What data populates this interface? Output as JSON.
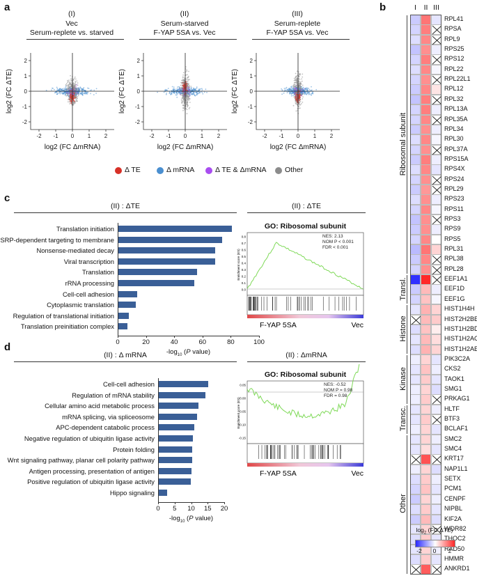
{
  "panel_a": {
    "label": "a",
    "plots": [
      {
        "roman": "(I)",
        "title1": "Vec",
        "title2": "Serum-replete vs. starved"
      },
      {
        "roman": "(II)",
        "title1": "Serum-starved",
        "title2": "F-YAP 5SA vs. Vec"
      },
      {
        "roman": "(III)",
        "title1": "Serum-replete",
        "title2": "F-YAP 5SA vs. Vec"
      }
    ],
    "xlabel": "log2 (FC ΔmRNA)",
    "ylabel": "log2 (FC ΔTE)",
    "xticks": [
      "-2",
      "-1",
      "0",
      "1",
      "2"
    ],
    "yticks": [
      "2",
      "1",
      "0",
      "-1",
      "-2"
    ],
    "legend": [
      {
        "label": "Δ TE",
        "color": "#d73027"
      },
      {
        "label": "Δ mRNA",
        "color": "#4a8fd0"
      },
      {
        "label": "Δ TE & ΔmRNA",
        "color": "#a94df0"
      },
      {
        "label": "Other",
        "color": "#8c8c8c"
      }
    ]
  },
  "panel_c": {
    "label": "c",
    "title": "(II) : ΔTE",
    "xlabel": "-log10 (P value)",
    "gsea_title": "(II) : ΔTE",
    "gsea": {
      "heading": "GO: Ribosomal subunit",
      "nes": "NES: 2.13",
      "nom": "NOM P < 0.001",
      "fdr": "FDR < 0.001",
      "ylabel": "Enrichment score (ES)",
      "yticks": [
        "0.8",
        "0.7",
        "0.6",
        "0.5",
        "0.4",
        "0.3",
        "0.2",
        "0.1",
        "0.0"
      ],
      "left": "F-YAP 5SA",
      "right": "Vec"
    }
  },
  "panel_d": {
    "label": "d",
    "title": "(II) : Δ mRNA",
    "xlabel": "-log10 (P value)",
    "gsea_title": "(II) : ΔmRNA",
    "gsea": {
      "heading": "GO: Ribosomal subunit",
      "nes": "NES: -0.52",
      "nom": "NOM P = 0.98",
      "fdr": "FDR = 0.98",
      "ylabel": "Enrichment score (ES)",
      "yticks": [
        "0.05",
        "0.00",
        "-0.05",
        "-0.10",
        "-0.15"
      ],
      "left": "F-YAP 5SA",
      "right": "Vec"
    }
  },
  "chart_data": [
    {
      "type": "bar",
      "orientation": "horizontal",
      "title": "(II) : ΔTE",
      "categories": [
        "Translation initiation",
        "SRP-dependent targeting to membrane",
        "Nonsense-mediated decay",
        "Viral transcription",
        "Translation",
        "rRNA processing",
        "Cell-cell adhesion",
        "Cytoplasmic translation",
        "Regulation of translational initiation",
        "Translation preinitiation complex"
      ],
      "values": [
        81,
        74,
        69,
        69,
        56,
        54,
        14,
        13,
        8,
        7
      ],
      "xlabel": "-log10 (P value)",
      "xlim": [
        0,
        100
      ],
      "xticks": [
        "0",
        "20",
        "40",
        "60",
        "80",
        "100"
      ]
    },
    {
      "type": "bar",
      "orientation": "horizontal",
      "title": "(II) : Δ mRNA",
      "categories": [
        "Cell-cell adhesion",
        "Regulation of mRNA stability",
        "Cellular amino acid metabolic process",
        "mRNA splicing, via spliceosome",
        "APC-dependent catabolic process",
        "Negative regulation of ubiquitin ligase activity",
        "Protein folding",
        "Wnt signaling pathway, planar cell polarity pathway",
        "Antigen processing, presentation of antigen",
        "Positive regulation of ubiquitin ligase activity",
        "Hippo signaling"
      ],
      "values": [
        15.2,
        14.3,
        12.2,
        11.8,
        11.0,
        10.5,
        10.3,
        10.2,
        10.0,
        9.8,
        2.7
      ],
      "xlabel": "-log10 (P value)",
      "xlim": [
        0,
        20
      ],
      "xticks": [
        "0",
        "5",
        "10",
        "15",
        "20"
      ]
    },
    {
      "type": "heatmap",
      "title": "log2 (FC ΔTE)",
      "columns": [
        "I",
        "II",
        "III"
      ],
      "colorbar_ticks": [
        "-2",
        "0",
        "2"
      ],
      "groups": [
        {
          "name": "Ribosomal subunit",
          "rows": [
            "RPL41",
            "RPSA",
            "RPL9",
            "RPS25",
            "RPS12",
            "RPL22",
            "RPL22L1",
            "RPL12",
            "RPL32",
            "RPL13A",
            "RPL35A",
            "RPL34",
            "RPL30",
            "RPL37A",
            "RPS15A",
            "RPS4X",
            "RPS24",
            "RPL29",
            "RPS23",
            "RPS11",
            "RPS3",
            "RPS9",
            "RPS5",
            "RPL31",
            "RPL38",
            "RPL28"
          ]
        },
        {
          "name": "Transl.",
          "rows": [
            "EEF1A1",
            "EEF1D",
            "EEF1G"
          ]
        },
        {
          "name": "Histone",
          "rows": [
            "HIST1H4H",
            "HIST2H2BE",
            "HIST1H2BD",
            "HIST1H2AC",
            "HIST1H2AE"
          ]
        },
        {
          "name": "Kinase",
          "rows": [
            "PIK3C2A",
            "CKS2",
            "TAOK1",
            "SMG1",
            "PRKAG1"
          ]
        },
        {
          "name": "Transc.",
          "rows": [
            "HLTF",
            "BTF3",
            "BCLAF1"
          ]
        },
        {
          "name": "Other",
          "rows": [
            "SMC2",
            "SMC4",
            "KRT17",
            "NAP1L1",
            "SETX",
            "PCM1",
            "CENPF",
            "NIPBL",
            "KIF2A",
            "WDR82",
            "THOC2",
            "RAD50",
            "HMMR",
            "ANKRD1"
          ]
        }
      ],
      "values": [
        [
          -0.6,
          1.6,
          -0.3
        ],
        [
          -0.5,
          1.5,
          null
        ],
        [
          -0.4,
          1.4,
          null
        ],
        [
          -0.7,
          1.3,
          -0.2
        ],
        [
          -0.5,
          1.5,
          null
        ],
        [
          -0.4,
          1.4,
          -0.1
        ],
        [
          -0.5,
          1.3,
          null
        ],
        [
          -0.6,
          1.4,
          0.3
        ],
        [
          -0.7,
          1.5,
          null
        ],
        [
          -0.5,
          1.5,
          -0.2
        ],
        [
          -0.5,
          1.4,
          null
        ],
        [
          -0.6,
          1.3,
          -0.2
        ],
        [
          -0.4,
          1.4,
          -0.1
        ],
        [
          -0.5,
          1.3,
          null
        ],
        [
          -0.6,
          1.5,
          -0.2
        ],
        [
          -0.4,
          1.4,
          -0.3
        ],
        [
          -0.5,
          1.3,
          null
        ],
        [
          -0.6,
          1.2,
          null
        ],
        [
          -0.4,
          1.3,
          -0.2
        ],
        [
          -0.5,
          1.4,
          -0.1
        ],
        [
          -0.7,
          1.3,
          null
        ],
        [
          -0.6,
          1.3,
          -0.2
        ],
        [
          -0.5,
          1.4,
          0.0
        ],
        [
          -0.8,
          1.6,
          0.5
        ],
        [
          -0.6,
          1.4,
          null
        ],
        [
          -0.5,
          1.3,
          null
        ],
        [
          -2.4,
          2.6,
          null
        ],
        [
          -0.6,
          0.8,
          -0.2
        ],
        [
          -0.5,
          0.7,
          -0.1
        ],
        [
          -0.3,
          0.9,
          0.5
        ],
        [
          null,
          0.8,
          0.6
        ],
        [
          -0.4,
          0.7,
          0.2
        ],
        [
          -0.3,
          0.8,
          0.4
        ],
        [
          -0.4,
          0.9,
          0.5
        ],
        [
          -0.2,
          0.5,
          -0.3
        ],
        [
          -0.3,
          0.7,
          -0.2
        ],
        [
          -0.3,
          0.6,
          -0.3
        ],
        [
          -0.2,
          0.5,
          -0.4
        ],
        [
          -0.2,
          0.6,
          null
        ],
        [
          -0.3,
          0.5,
          -0.2
        ],
        [
          -0.3,
          0.6,
          null
        ],
        [
          -0.2,
          0.5,
          -0.3
        ],
        [
          -0.3,
          0.5,
          -0.2
        ],
        [
          -0.3,
          0.4,
          -0.3
        ],
        [
          null,
          2.0,
          null
        ],
        [
          -0.2,
          0.5,
          -0.4
        ],
        [
          -0.4,
          0.6,
          -0.2
        ],
        [
          -0.5,
          0.7,
          -0.3
        ],
        [
          -0.6,
          0.5,
          -0.2
        ],
        [
          -0.4,
          0.6,
          -0.3
        ],
        [
          -0.6,
          0.8,
          -0.4
        ],
        [
          -0.3,
          0.5,
          null
        ],
        [
          -0.4,
          0.6,
          -0.3
        ],
        [
          -0.3,
          0.5,
          -0.2
        ],
        [
          -0.4,
          0.6,
          -0.3
        ],
        [
          null,
          1.9,
          null
        ]
      ]
    }
  ]
}
